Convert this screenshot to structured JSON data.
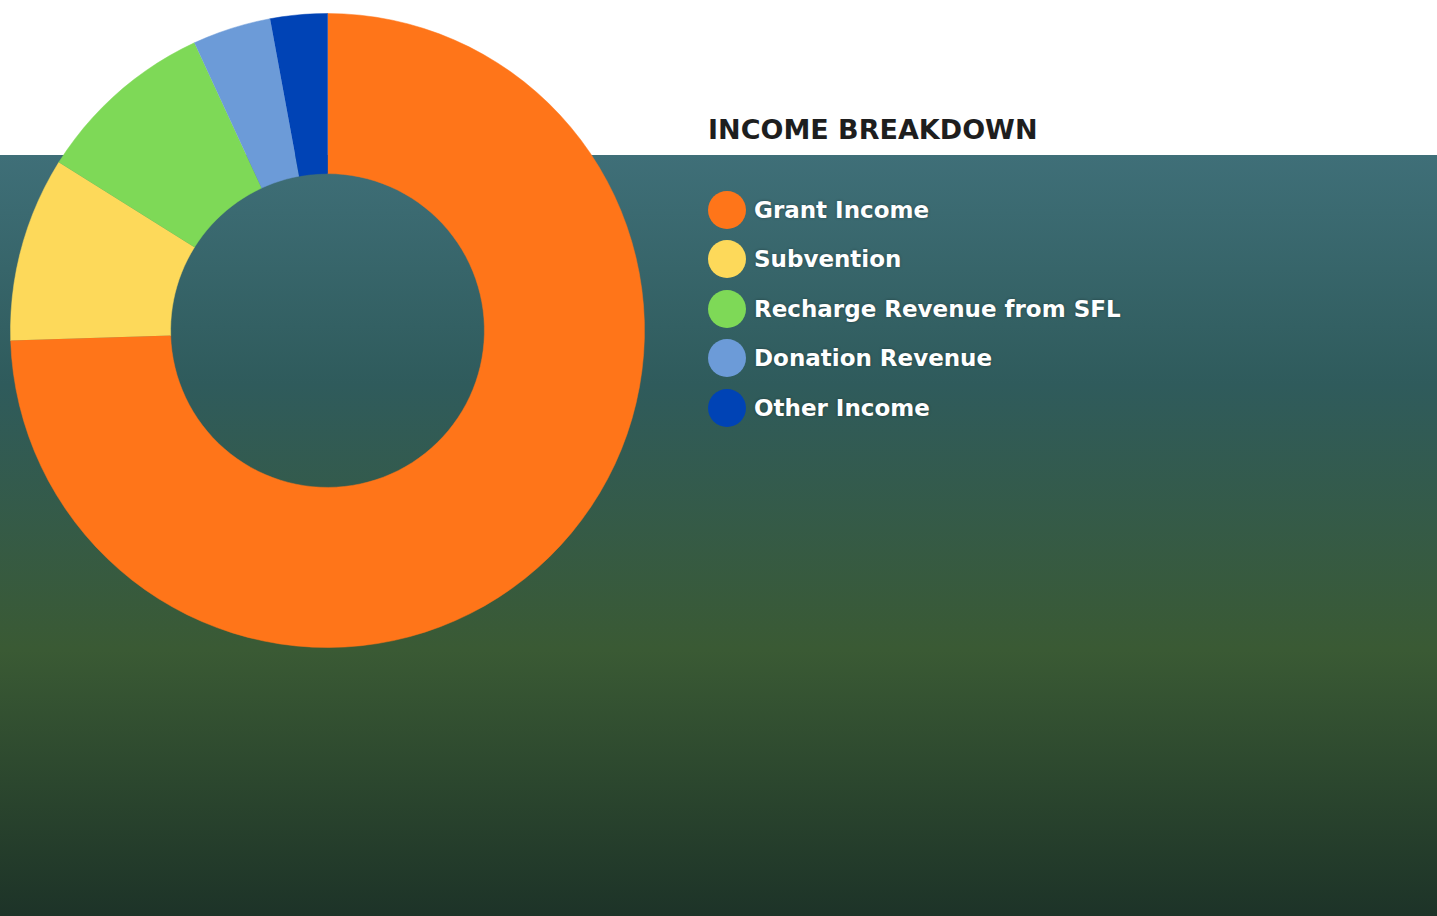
{
  "chart_data": {
    "type": "donut",
    "title": "INCOME BREAKDOWN",
    "categories": [
      "Grant Income",
      "Subvention",
      "Recharge Revenue from SFL",
      "Donation Revenue",
      "Other Income"
    ],
    "values": [
      74.5,
      9.4,
      9.2,
      4.0,
      2.9
    ],
    "colors": [
      "#ff7519",
      "#fdd95a",
      "#7ed957",
      "#6c9bd8",
      "#0043b5"
    ],
    "legend": "right"
  }
}
